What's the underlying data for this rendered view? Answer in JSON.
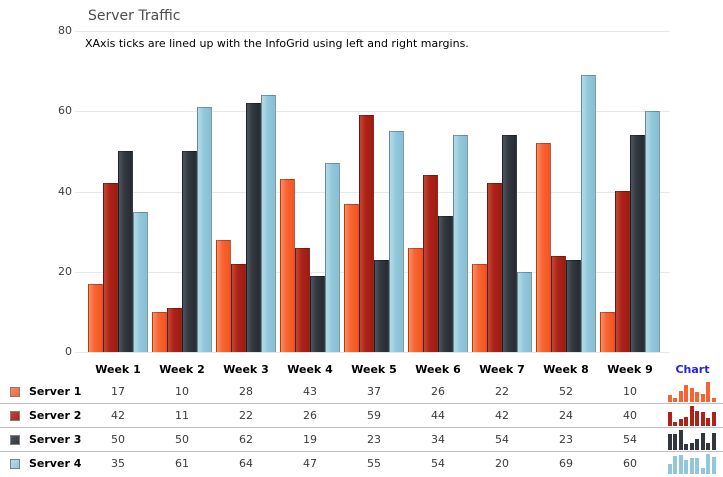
{
  "chart": {
    "title": "Server Traffic",
    "subtitle": "XAxis ticks are lined up with the InfoGrid using left and right margins.",
    "y_axis_ticks": [
      0,
      20,
      40,
      60,
      80
    ]
  },
  "chart_data": {
    "type": "bar",
    "title": "Server Traffic",
    "subtitle": "XAxis ticks are lined up with the InfoGrid using left and right margins.",
    "categories": [
      "Week 1",
      "Week 2",
      "Week 3",
      "Week 4",
      "Week 5",
      "Week 6",
      "Week 7",
      "Week 8",
      "Week 9"
    ],
    "series": [
      {
        "name": "Server 1",
        "color": "#F96231",
        "color_light": "#FB8D63",
        "color_dark": "#F2551F",
        "values": [
          17,
          10,
          28,
          43,
          37,
          26,
          22,
          52,
          10
        ]
      },
      {
        "name": "Server 2",
        "color": "#AE2217",
        "color_light": "#C24634",
        "color_dark": "#9E1B10",
        "values": [
          42,
          11,
          22,
          26,
          59,
          44,
          42,
          24,
          40
        ]
      },
      {
        "name": "Server 3",
        "color": "#31373D",
        "color_light": "#4D565E",
        "color_dark": "#272C31",
        "values": [
          50,
          50,
          62,
          19,
          23,
          34,
          54,
          23,
          54
        ]
      },
      {
        "name": "Server 4",
        "color": "#92C7DB",
        "color_light": "#B5DBE8",
        "color_dark": "#86BFD5",
        "values": [
          35,
          61,
          64,
          47,
          55,
          54,
          20,
          69,
          60
        ]
      }
    ],
    "ylim": [
      0,
      80
    ],
    "grid": true,
    "legend_position": "left-of-grid-rows"
  },
  "grid": {
    "chart_column_label": "Chart",
    "chart_column_color": "#2323DF"
  },
  "layout_colors": {
    "gridline": "#e8e8e8",
    "row_separator": "#bfbfbf"
  }
}
